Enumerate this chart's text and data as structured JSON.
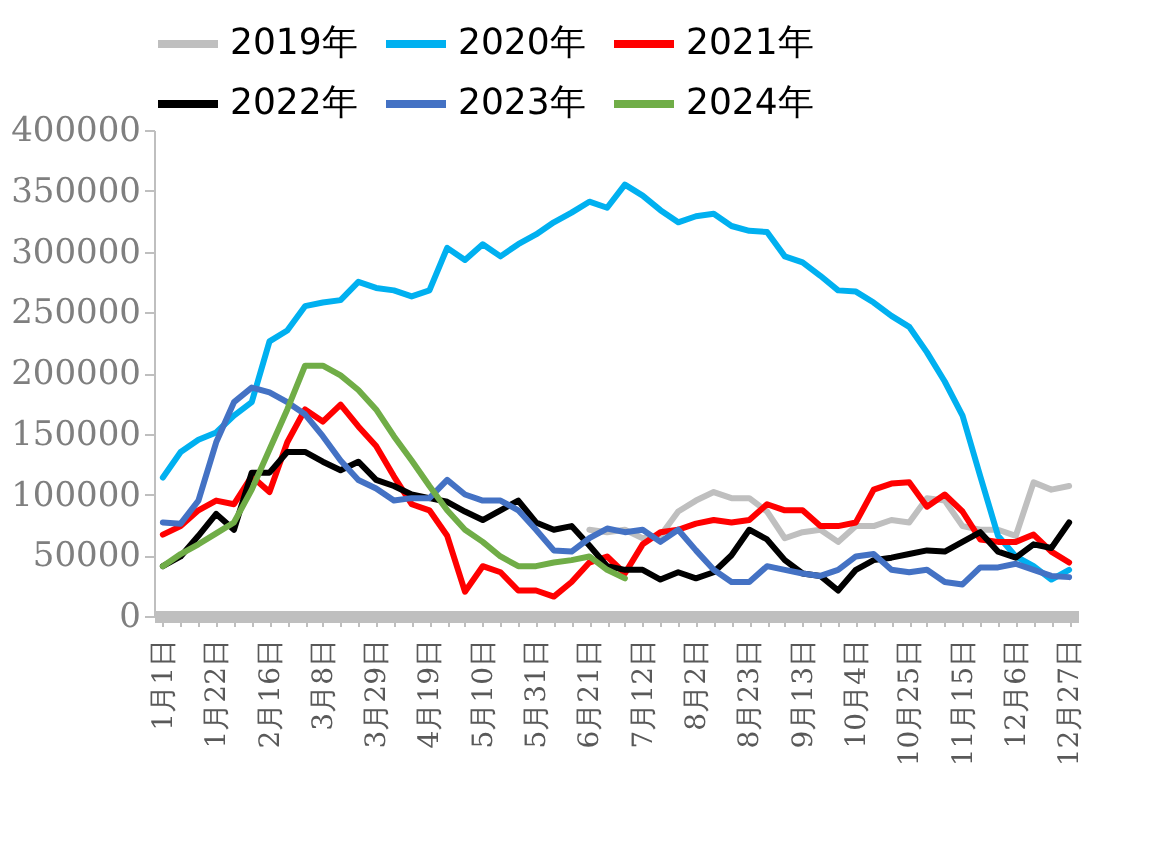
{
  "chart_data": {
    "type": "line",
    "categories": [
      "1月1日",
      null,
      null,
      "1月22日",
      null,
      null,
      "2月16日",
      null,
      null,
      "3月8日",
      null,
      null,
      "3月29日",
      null,
      null,
      "4月19日",
      null,
      null,
      "5月10日",
      null,
      null,
      "5月31日",
      null,
      null,
      "6月21日",
      null,
      null,
      "7月12日",
      null,
      null,
      "8月2日",
      null,
      null,
      "8月23日",
      null,
      null,
      "9月13日",
      null,
      null,
      "10月4日",
      null,
      null,
      "10月25日",
      null,
      null,
      "11月15日",
      null,
      null,
      "12月6日",
      null,
      null,
      "12月27日"
    ],
    "series": [
      {
        "name": "2019年",
        "color": "#bfbfbf",
        "values": [
          null,
          null,
          null,
          null,
          null,
          null,
          null,
          null,
          null,
          null,
          null,
          null,
          null,
          null,
          null,
          null,
          null,
          null,
          null,
          null,
          null,
          null,
          null,
          null,
          71000,
          69000,
          71000,
          64000,
          66000,
          86000,
          95000,
          102000,
          97000,
          97000,
          86000,
          64000,
          69000,
          71000,
          61000,
          74000,
          74000,
          79000,
          77000,
          97000,
          95000,
          74000,
          71000,
          71000,
          66000,
          110000,
          104000,
          107000
        ]
      },
      {
        "name": "2020年",
        "color": "#00b0f0",
        "values": [
          114000,
          135000,
          145000,
          151000,
          165000,
          176000,
          226000,
          235000,
          255000,
          258000,
          260000,
          275000,
          270000,
          268000,
          263000,
          268000,
          303000,
          293000,
          306000,
          296000,
          306000,
          314000,
          324000,
          332000,
          341000,
          336000,
          355000,
          346000,
          334000,
          324000,
          329000,
          331000,
          321000,
          317000,
          316000,
          296000,
          291000,
          280000,
          268000,
          267000,
          258000,
          247000,
          238000,
          217000,
          193000,
          165000,
          115000,
          66000,
          49000,
          41000,
          30000,
          38000
        ]
      },
      {
        "name": "2021年",
        "color": "#ff0000",
        "values": [
          67000,
          74000,
          87000,
          95000,
          92000,
          115000,
          102000,
          143000,
          170000,
          160000,
          174000,
          156000,
          140000,
          115000,
          92000,
          87000,
          66000,
          20000,
          41000,
          36000,
          21000,
          21000,
          16000,
          28000,
          44000,
          49000,
          35000,
          59000,
          69000,
          71000,
          76000,
          79000,
          77000,
          79000,
          92000,
          87000,
          87000,
          74000,
          74000,
          77000,
          104000,
          109000,
          110000,
          90000,
          100000,
          86000,
          63000,
          61000,
          61000,
          67000,
          53000,
          44000
        ]
      },
      {
        "name": "2022年",
        "color": "#000000",
        "values": [
          41000,
          49000,
          66000,
          84000,
          71000,
          118000,
          118000,
          135000,
          135000,
          127000,
          120000,
          127000,
          112000,
          107000,
          100000,
          97000,
          94000,
          86000,
          79000,
          87000,
          95000,
          77000,
          71000,
          74000,
          58000,
          41000,
          38000,
          38000,
          30000,
          36000,
          31000,
          36000,
          50000,
          71000,
          63000,
          46000,
          35000,
          33000,
          21000,
          38000,
          46000,
          48000,
          51000,
          54000,
          53000,
          61000,
          69000,
          53000,
          48000,
          59000,
          56000,
          77000
        ]
      },
      {
        "name": "2023年",
        "color": "#4472c4",
        "values": [
          77000,
          76000,
          95000,
          143000,
          176000,
          188000,
          184000,
          176000,
          166000,
          148000,
          128000,
          112000,
          105000,
          95000,
          97000,
          97000,
          112000,
          100000,
          95000,
          95000,
          87000,
          71000,
          54000,
          53000,
          64000,
          72000,
          69000,
          71000,
          61000,
          71000,
          54000,
          38000,
          28000,
          28000,
          41000,
          38000,
          35000,
          33000,
          38000,
          49000,
          51000,
          38000,
          36000,
          38000,
          28000,
          26000,
          40000,
          40000,
          43000,
          38000,
          33000,
          32000
        ]
      },
      {
        "name": "2024年",
        "color": "#70ad47",
        "values": [
          41000,
          51000,
          59000,
          68000,
          77000,
          104000,
          137000,
          170000,
          206000,
          206000,
          198000,
          186000,
          170000,
          148000,
          128000,
          107000,
          87000,
          71000,
          61000,
          49000,
          41000,
          41000,
          44000,
          46000,
          49000,
          38000,
          31000,
          null,
          null,
          null,
          null,
          null,
          null,
          null,
          null,
          null,
          null,
          null,
          null,
          null,
          null,
          null,
          null,
          null,
          null,
          null,
          null,
          null,
          null,
          null,
          null,
          null
        ]
      }
    ],
    "ylim": [
      0,
      400000
    ],
    "yticks": [
      0,
      50000,
      100000,
      150000,
      200000,
      250000,
      300000,
      350000,
      400000
    ],
    "grid": false,
    "legend": "top",
    "marker": "none",
    "line_style": "solid"
  }
}
